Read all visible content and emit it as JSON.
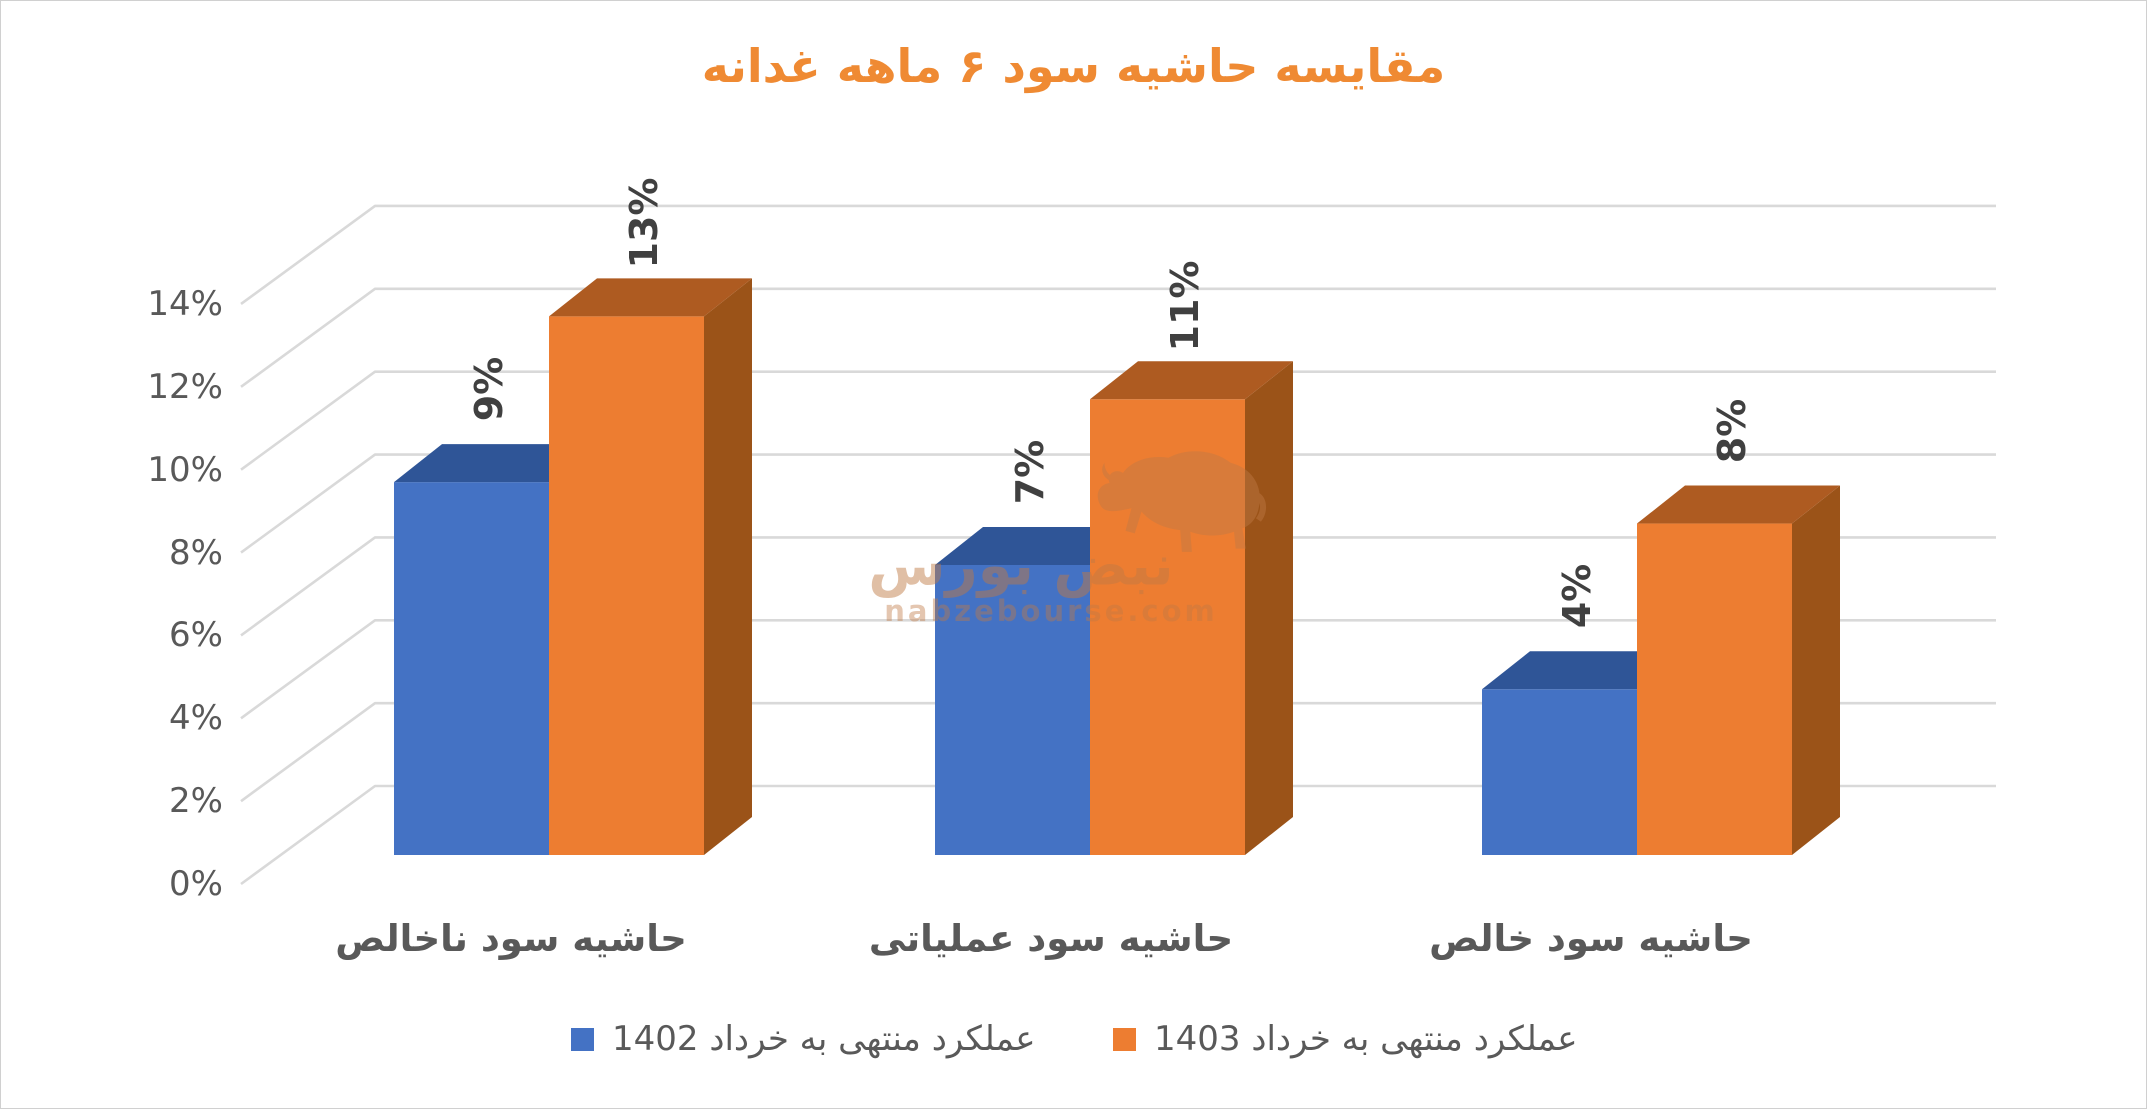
{
  "title": {
    "text": "مقایسه حاشیه سود ۶ ماهه غدانه",
    "color": "#EF8A33"
  },
  "watermark": {
    "brand": "نبض بورس",
    "domain": "nabzebourse.com",
    "bull_icon_color": "#c07a45"
  },
  "legend": {
    "items": [
      {
        "label": "عملکرد منتهی به خرداد 1402",
        "color": "#4472C4"
      },
      {
        "label": "عملکرد منتهی به خرداد 1403",
        "color": "#ED7D31"
      }
    ]
  },
  "chart_data": {
    "type": "bar",
    "style": "3d-clustered-column",
    "categories": [
      "حاشیه سود ناخالص",
      "حاشیه سود عملیاتی",
      "حاشیه سود خالص"
    ],
    "series": [
      {
        "name": "عملکرد منتهی به خرداد 1402",
        "values": [
          9,
          7,
          4
        ],
        "labels": [
          "9%",
          "7%",
          "4%"
        ],
        "color_front": "#4472C4",
        "color_top": "#2F5597"
      },
      {
        "name": "عملکرد منتهی به خرداد 1403",
        "values": [
          13,
          11,
          8
        ],
        "labels": [
          "13%",
          "11%",
          "8%"
        ],
        "color_front": "#ED7D31",
        "color_top": "#AE5B21",
        "color_side": "#9B5318"
      }
    ],
    "ylabel": "",
    "xlabel": "",
    "yticks": [
      "0%",
      "2%",
      "4%",
      "6%",
      "8%",
      "10%",
      "12%",
      "14%"
    ],
    "ylim": [
      0,
      14
    ],
    "ystep": 2,
    "grid": true,
    "gridline_color": "#D9D9D9",
    "legend_position": "bottom"
  }
}
